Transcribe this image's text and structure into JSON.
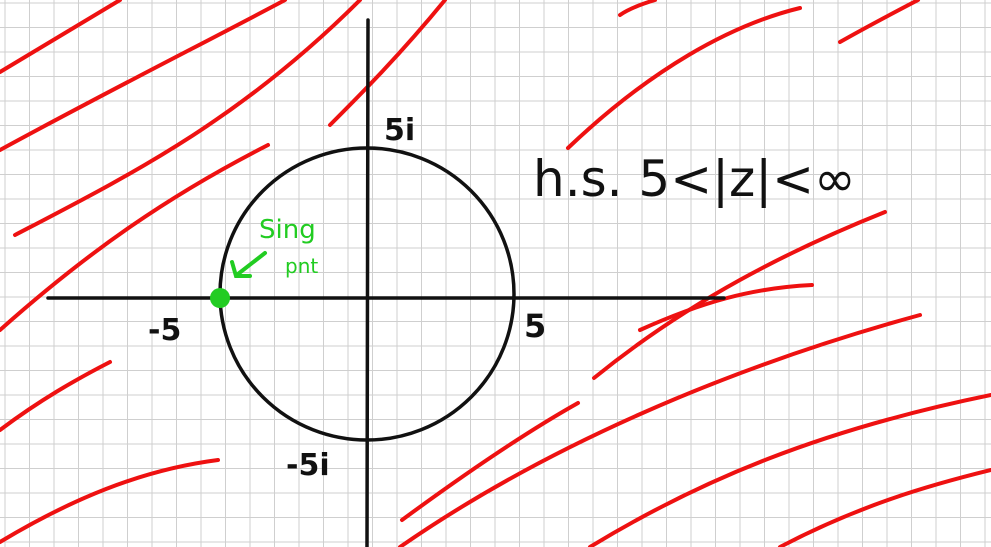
{
  "colors": {
    "background": "#ffffff",
    "grid": "#cfcfcf",
    "ink": "#111111",
    "hatch": "#ee1111",
    "singular": "#22cc22"
  },
  "labels": {
    "imag_pos": "5i",
    "imag_neg": "-5i",
    "real_pos": "5",
    "real_neg": "-5",
    "region": "h.s. 5<|z|<∞",
    "annotation_line1": "Sing",
    "annotation_line2": "pnt"
  },
  "math": {
    "radius": 5,
    "singular_point": [
      -5,
      0
    ]
  }
}
